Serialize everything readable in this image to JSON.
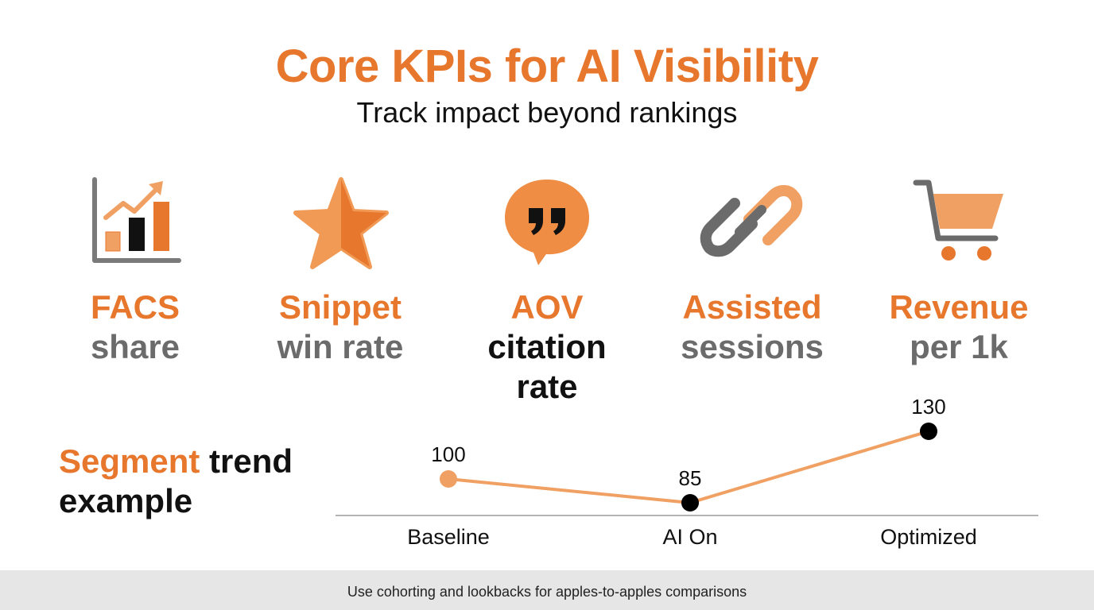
{
  "header": {
    "title": "Core KPIs for AI Visibility",
    "subtitle": "Track impact beyond rankings"
  },
  "kpis": [
    {
      "icon": "bar-chart-trend-icon",
      "line1": "FACS",
      "line2": "share"
    },
    {
      "icon": "star-icon",
      "line1": "Snippet",
      "line2": "win rate"
    },
    {
      "icon": "quote-bubble-icon",
      "line1": "AOV",
      "line2": "citation rate"
    },
    {
      "icon": "link-icon",
      "line1": "Assisted",
      "line2": "sessions"
    },
    {
      "icon": "shopping-cart-icon",
      "line1": "Revenue",
      "line2": "per 1k"
    }
  ],
  "trend": {
    "label_accent": "Segment",
    "label_rest": "trend",
    "label_line2": "example"
  },
  "chart_data": {
    "type": "line",
    "categories": [
      "Baseline",
      "AI On",
      "Optimized"
    ],
    "values": [
      100,
      85,
      130
    ],
    "data_labels": [
      "100",
      "85",
      "130"
    ],
    "ylim": [
      80,
      135
    ],
    "grid": false,
    "colors": {
      "line": "#f0a062",
      "first_point": "#f0a062",
      "points": "#000000"
    }
  },
  "footer": {
    "text": "Use cohorting and lookbacks for apples-to-apples comparisons"
  },
  "colors": {
    "accent": "#e8772e",
    "accent_light": "#f0a062",
    "gray": "#6b6b6b",
    "dark": "#111111"
  }
}
